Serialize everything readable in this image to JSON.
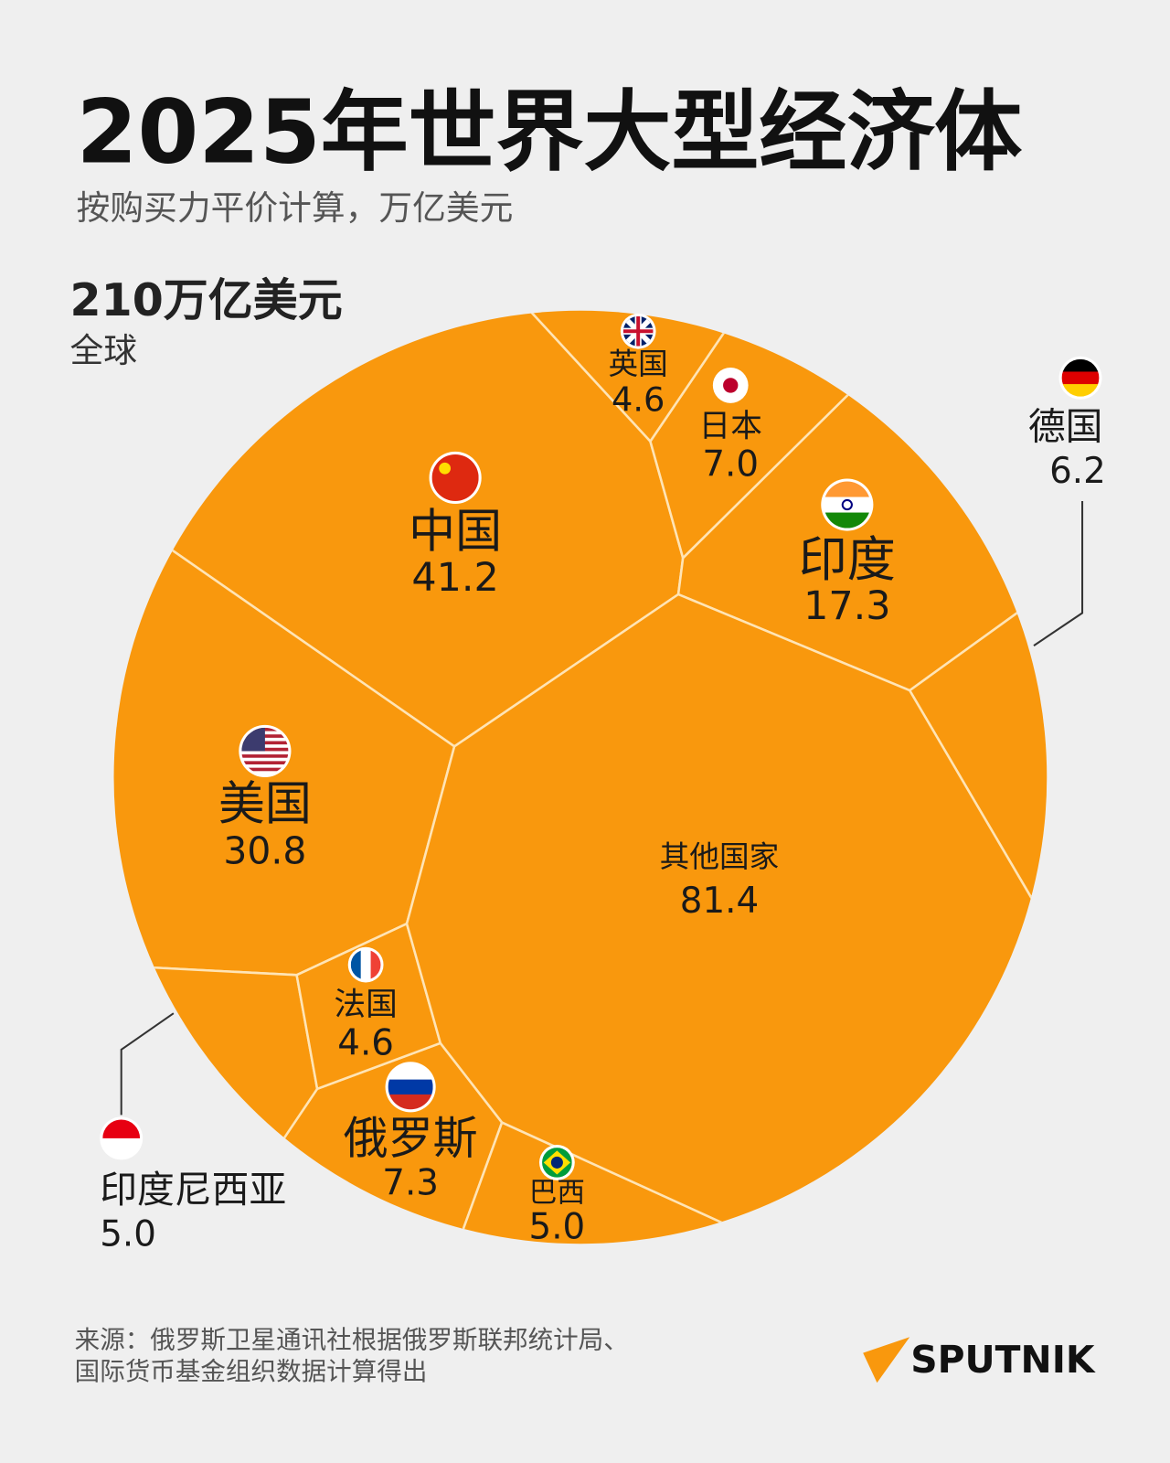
{
  "chart_data": {
    "type": "treemap",
    "title": "2025年世界大型经济体",
    "subtitle": "按购买力平价计算，万亿美元",
    "total_label": "210万亿美元",
    "total_sublabel": "全球",
    "categories": [
      "中国",
      "美国",
      "印度",
      "俄罗斯",
      "日本",
      "德国",
      "印度尼西亚",
      "巴西",
      "法国",
      "英国",
      "其他国家"
    ],
    "values": [
      41.2,
      30.8,
      17.3,
      7.3,
      7.0,
      6.2,
      5.0,
      5.0,
      4.6,
      4.6,
      81.4
    ],
    "value_labels": [
      "41.2",
      "30.8",
      "17.3",
      "7.3",
      "7.0",
      "6.2",
      "5.0",
      "5.0",
      "4.6",
      "4.6",
      "81.4"
    ],
    "color": "#f9980d",
    "source": [
      "来源：俄罗斯卫星通讯社根据俄罗斯联邦统计局、",
      "国际货币基金组织数据计算得出"
    ],
    "logo": "SPUTNIK"
  }
}
